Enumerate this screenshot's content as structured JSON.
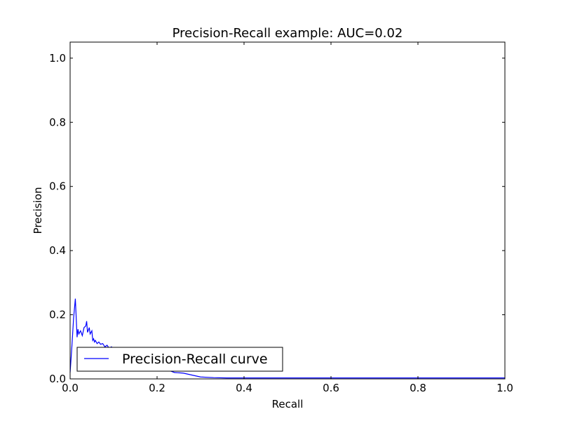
{
  "chart_data": {
    "type": "line",
    "title": "Precision-Recall example: AUC=0.02",
    "xlabel": "Recall",
    "ylabel": "Precision",
    "xlim": [
      0.0,
      1.0
    ],
    "ylim": [
      0.0,
      1.05
    ],
    "xticks": [
      "0.0",
      "0.2",
      "0.4",
      "0.6",
      "0.8",
      "1.0"
    ],
    "yticks": [
      "0.0",
      "0.2",
      "0.4",
      "0.6",
      "0.8",
      "1.0"
    ],
    "grid": false,
    "legend": {
      "position": "lower-left",
      "entries": [
        "Precision-Recall curve"
      ]
    },
    "series": [
      {
        "name": "Precision-Recall curve",
        "color": "#0000ff",
        "x": [
          0.0,
          0.004,
          0.008,
          0.012,
          0.016,
          0.018,
          0.02,
          0.024,
          0.028,
          0.032,
          0.036,
          0.038,
          0.04,
          0.044,
          0.046,
          0.05,
          0.052,
          0.054,
          0.056,
          0.058,
          0.062,
          0.066,
          0.07,
          0.075,
          0.08,
          0.085,
          0.09,
          0.095,
          0.1,
          0.11,
          0.12,
          0.14,
          0.16,
          0.18,
          0.2,
          0.22,
          0.24,
          0.26,
          0.28,
          0.3,
          0.33,
          0.36,
          0.4,
          0.5,
          0.6,
          0.7,
          0.8,
          0.9,
          1.0
        ],
        "y": [
          0.02,
          0.1,
          0.19,
          0.25,
          0.13,
          0.155,
          0.14,
          0.15,
          0.135,
          0.16,
          0.165,
          0.18,
          0.145,
          0.16,
          0.14,
          0.15,
          0.12,
          0.125,
          0.115,
          0.12,
          0.11,
          0.115,
          0.108,
          0.11,
          0.1,
          0.105,
          0.095,
          0.1,
          0.09,
          0.095,
          0.085,
          0.075,
          0.06,
          0.05,
          0.04,
          0.03,
          0.02,
          0.018,
          0.012,
          0.006,
          0.004,
          0.003,
          0.003,
          0.003,
          0.003,
          0.003,
          0.003,
          0.003,
          0.003
        ]
      }
    ]
  }
}
